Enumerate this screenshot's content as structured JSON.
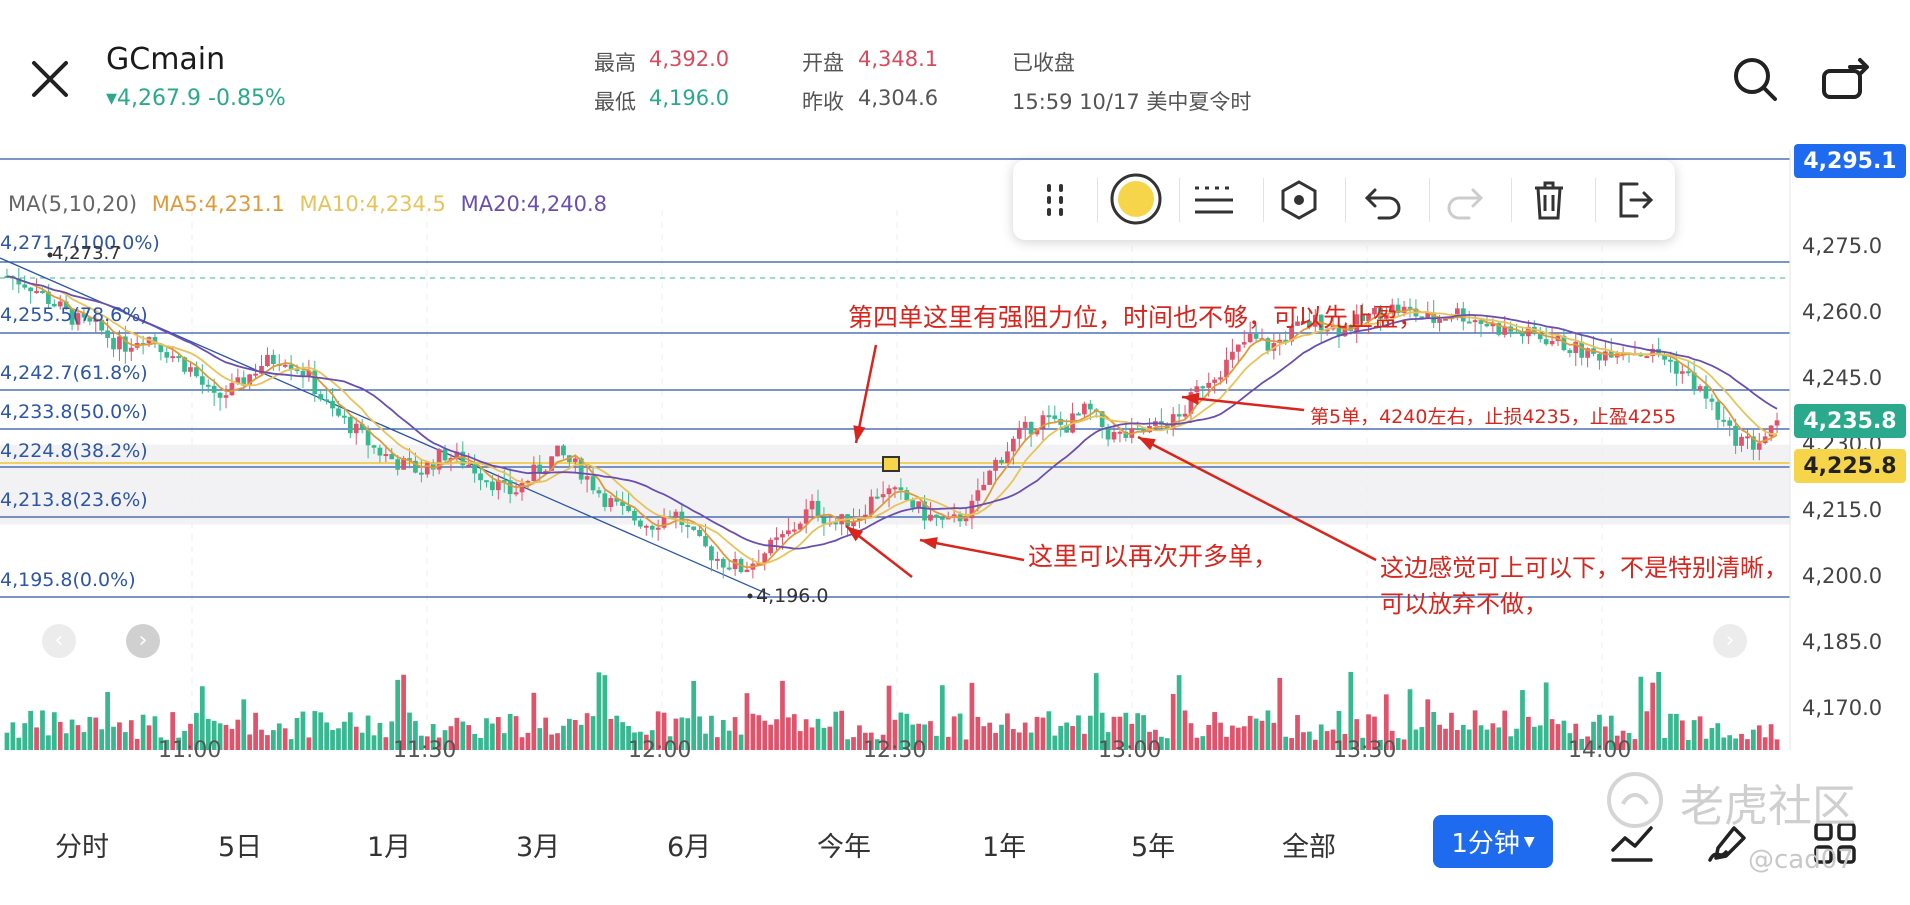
{
  "header": {
    "symbol": "GCmain",
    "change": "4,267.9 -0.85%",
    "high_label": "最高",
    "high_value": "4,392.0",
    "low_label": "最低",
    "low_value": "4,196.0",
    "open_label": "开盘",
    "open_value": "4,348.1",
    "prev_close_label": "昨收",
    "prev_close_value": "4,304.6",
    "status": "已收盘",
    "timestamp": "15:59 10/17 美中夏令时"
  },
  "ma_legend": {
    "title": "MA(5,10,20)",
    "ma5": "MA5:4,231.1",
    "ma10": "MA10:4,234.5",
    "ma20": "MA20:4,240.8"
  },
  "fib_levels": [
    "4,271.7(100.0%)",
    "4,255.5(78.6%)",
    "4,242.7(61.8%)",
    "4,233.8(50.0%)",
    "4,224.8(38.2%)",
    "4,213.8(23.6%)",
    "4,195.8(0.0%)"
  ],
  "price_tags": {
    "top": "4,295.1",
    "current": "4,235.8",
    "yellow": "4,225.8"
  },
  "marks": {
    "high_mark": "4,273.7",
    "low_mark": "4,196.0"
  },
  "annotations": {
    "a1": "第四单这里有强阻力位，时间也不够，可以先止盈，",
    "a2": "第5单，4240左右，止损4235，止盈4255",
    "a3": "这里可以再次开多单，",
    "a4": "这边感觉可上可以下，不是特别清晰，",
    "a5": "可以放弃不做，"
  },
  "tabs": {
    "t1": "分时",
    "t2": "5日",
    "t3": "1月",
    "t4": "3月",
    "t5": "6月",
    "t6": "今年",
    "t7": "1年",
    "t8": "5年",
    "t9": "全部",
    "timeframe": "1分钟"
  },
  "watermark": {
    "brand": "老虎社区",
    "user": "@cad07"
  },
  "colors": {
    "up": "#e0536a",
    "down": "#36b98f",
    "ma5": "#e09a3a",
    "ma10": "#e8c35a",
    "ma20": "#6a4fb0",
    "fib": "#2d56a8",
    "annotation": "#d9251d",
    "accent": "#1e6bf0"
  },
  "chart_data": {
    "type": "candlestick",
    "y_ticks": [
      "4,275.0",
      "4,260.0",
      "4,245.0",
      "4,230.0",
      "4,215.0",
      "4,200.0",
      "4,185.0",
      "4,170.0"
    ],
    "x_ticks": [
      "11:00",
      "11:30",
      "12:00",
      "12:30",
      "13:00",
      "13:30",
      "14:00"
    ],
    "close_path": [
      4268,
      4266,
      4262,
      4258,
      4256,
      4252,
      4255,
      4251,
      4247,
      4240,
      4243,
      4248,
      4250,
      4246,
      4238,
      4234,
      4229,
      4226,
      4224,
      4228,
      4226,
      4222,
      4219,
      4224,
      4228,
      4224,
      4218,
      4214,
      4212,
      4215,
      4208,
      4204,
      4202,
      4206,
      4210,
      4216,
      4212,
      4214,
      4220,
      4218,
      4214,
      4212,
      4216,
      4226,
      4232,
      4236,
      4234,
      4238,
      4232,
      4232,
      4234,
      4236,
      4244,
      4248,
      4254,
      4252,
      4256,
      4258,
      4256,
      4258,
      4261,
      4260,
      4258,
      4260,
      4258,
      4256,
      4255,
      4254,
      4252,
      4250,
      4252,
      4251,
      4250,
      4246,
      4240,
      4232,
      4230,
      4234
    ]
  }
}
